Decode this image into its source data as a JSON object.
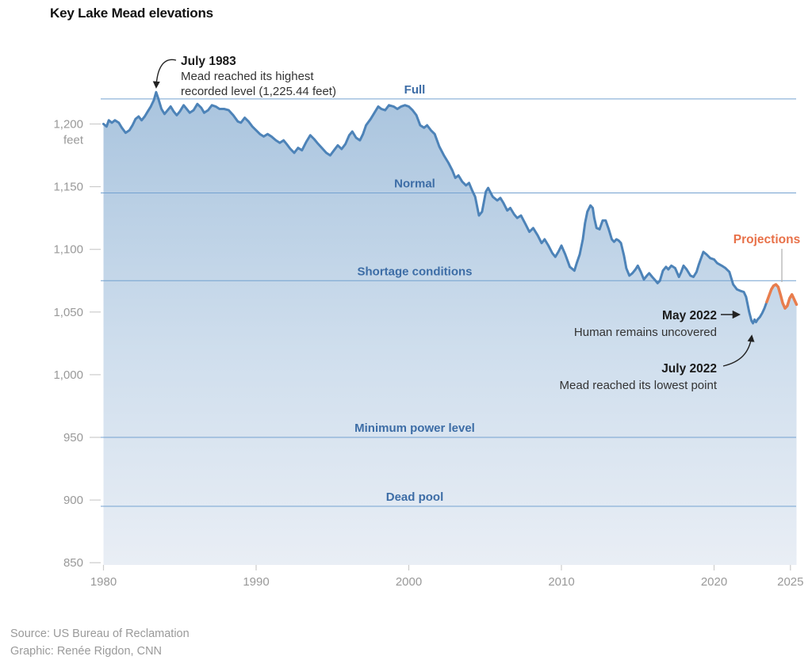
{
  "title": "Key Lake Mead elevations",
  "footer": {
    "source_line": "Source: US Bureau of Reclamation",
    "credit_line": "Graphic: Renée Rigdon, CNN"
  },
  "chart_data": {
    "type": "area",
    "title": "Key Lake Mead elevations",
    "x_axis": {
      "range": [
        1980,
        2025.4
      ],
      "ticks": [
        {
          "label": "1980",
          "value": 1980
        },
        {
          "label": "1990",
          "value": 1990
        },
        {
          "label": "2000",
          "value": 2000
        },
        {
          "label": "2010",
          "value": 2010
        },
        {
          "label": "2020",
          "value": 2020
        },
        {
          "label": "2025",
          "value": 2025
        }
      ]
    },
    "y_axis": {
      "unit": "feet",
      "range": [
        850,
        1230
      ],
      "ticks": [
        {
          "label": "1,200",
          "value": 1200
        },
        {
          "label": "1,150",
          "value": 1150
        },
        {
          "label": "1,100",
          "value": 1100
        },
        {
          "label": "1,050",
          "value": 1050
        },
        {
          "label": "1,000",
          "value": 1000
        },
        {
          "label": "950",
          "value": 950
        },
        {
          "label": "900",
          "value": 900
        },
        {
          "label": "850",
          "value": 850
        }
      ]
    },
    "reference_lines": [
      {
        "id": "full",
        "label": "Full",
        "value": 1220
      },
      {
        "id": "normal",
        "label": "Normal",
        "value": 1145
      },
      {
        "id": "shortage",
        "label": "Shortage conditions",
        "value": 1075
      },
      {
        "id": "minimum-power",
        "label": "Minimum power level",
        "value": 950
      },
      {
        "id": "dead-pool",
        "label": "Dead pool",
        "value": 895
      }
    ],
    "annotations": [
      {
        "id": "july-1983",
        "title": "July 1983",
        "line1": "Mead reached its highest",
        "line2": "recorded level (1,225.44 feet)"
      },
      {
        "id": "may-2022",
        "title": "May 2022",
        "line1": "Human remains uncovered"
      },
      {
        "id": "july-2022",
        "title": "July 2022",
        "line1": "Mead reached its lowest point"
      },
      {
        "id": "projections",
        "title": "Projections"
      }
    ],
    "colors": {
      "historical_line": "#4d83b8",
      "projection_line": "#e87d4d",
      "area_top": "#a9c4de",
      "area_mid": "#cfdeed",
      "area_bottom": "#e9eef5",
      "reference_line": "#74a2d0",
      "reference_label": "#3d6da6",
      "axis_text": "#999999",
      "tick_mark": "#cccccc",
      "annotation_title": "#1a1a1a",
      "annotation_text": "#333333",
      "source_text": "#9a9a9a"
    },
    "series": [
      {
        "name": "Historical elevation",
        "color": "#4d83b8",
        "points": [
          [
            1980.0,
            1200
          ],
          [
            1980.2,
            1198
          ],
          [
            1980.35,
            1203
          ],
          [
            1980.55,
            1201
          ],
          [
            1980.75,
            1203
          ],
          [
            1981.0,
            1201
          ],
          [
            1981.2,
            1197
          ],
          [
            1981.45,
            1193
          ],
          [
            1981.7,
            1195
          ],
          [
            1981.9,
            1199
          ],
          [
            1982.1,
            1204
          ],
          [
            1982.3,
            1206
          ],
          [
            1982.5,
            1203
          ],
          [
            1982.7,
            1206
          ],
          [
            1982.9,
            1210
          ],
          [
            1983.1,
            1214
          ],
          [
            1983.3,
            1219
          ],
          [
            1983.45,
            1225.4
          ],
          [
            1983.6,
            1220
          ],
          [
            1983.8,
            1212
          ],
          [
            1984.0,
            1208
          ],
          [
            1984.2,
            1211
          ],
          [
            1984.4,
            1214
          ],
          [
            1984.6,
            1210
          ],
          [
            1984.8,
            1207
          ],
          [
            1985.0,
            1210
          ],
          [
            1985.25,
            1215
          ],
          [
            1985.45,
            1212
          ],
          [
            1985.65,
            1209
          ],
          [
            1985.9,
            1211
          ],
          [
            1986.15,
            1216
          ],
          [
            1986.4,
            1213
          ],
          [
            1986.6,
            1209
          ],
          [
            1986.85,
            1211
          ],
          [
            1987.1,
            1215
          ],
          [
            1987.35,
            1214
          ],
          [
            1987.6,
            1212
          ],
          [
            1987.9,
            1212
          ],
          [
            1988.2,
            1211
          ],
          [
            1988.5,
            1207
          ],
          [
            1988.8,
            1202
          ],
          [
            1989.0,
            1201
          ],
          [
            1989.25,
            1205
          ],
          [
            1989.5,
            1202
          ],
          [
            1989.75,
            1198
          ],
          [
            1990.0,
            1195
          ],
          [
            1990.25,
            1192
          ],
          [
            1990.5,
            1190
          ],
          [
            1990.75,
            1192
          ],
          [
            1991.0,
            1190
          ],
          [
            1991.3,
            1187
          ],
          [
            1991.55,
            1185
          ],
          [
            1991.8,
            1187
          ],
          [
            1992.0,
            1184
          ],
          [
            1992.25,
            1180
          ],
          [
            1992.5,
            1177
          ],
          [
            1992.75,
            1181
          ],
          [
            1993.0,
            1179
          ],
          [
            1993.3,
            1186
          ],
          [
            1993.55,
            1191
          ],
          [
            1993.8,
            1188
          ],
          [
            1994.0,
            1185
          ],
          [
            1994.3,
            1181
          ],
          [
            1994.6,
            1177
          ],
          [
            1994.85,
            1175
          ],
          [
            1995.1,
            1179
          ],
          [
            1995.35,
            1183
          ],
          [
            1995.6,
            1180
          ],
          [
            1995.85,
            1184
          ],
          [
            1996.1,
            1191
          ],
          [
            1996.3,
            1194
          ],
          [
            1996.55,
            1189
          ],
          [
            1996.8,
            1187
          ],
          [
            1997.0,
            1192
          ],
          [
            1997.2,
            1199
          ],
          [
            1997.5,
            1204
          ],
          [
            1997.75,
            1209
          ],
          [
            1998.0,
            1214
          ],
          [
            1998.2,
            1212
          ],
          [
            1998.45,
            1211
          ],
          [
            1998.7,
            1215
          ],
          [
            1999.0,
            1214
          ],
          [
            1999.25,
            1212
          ],
          [
            1999.5,
            1214
          ],
          [
            1999.75,
            1215
          ],
          [
            2000.0,
            1214
          ],
          [
            2000.25,
            1211
          ],
          [
            2000.5,
            1207
          ],
          [
            2000.75,
            1199
          ],
          [
            2001.0,
            1197
          ],
          [
            2001.2,
            1199
          ],
          [
            2001.45,
            1195
          ],
          [
            2001.7,
            1192
          ],
          [
            2002.0,
            1182
          ],
          [
            2002.3,
            1175
          ],
          [
            2002.6,
            1169
          ],
          [
            2002.85,
            1163
          ],
          [
            2003.05,
            1157
          ],
          [
            2003.25,
            1159
          ],
          [
            2003.5,
            1154
          ],
          [
            2003.75,
            1151
          ],
          [
            2003.95,
            1153
          ],
          [
            2004.15,
            1147
          ],
          [
            2004.35,
            1142
          ],
          [
            2004.6,
            1127
          ],
          [
            2004.8,
            1130
          ],
          [
            2005.05,
            1146
          ],
          [
            2005.2,
            1149
          ],
          [
            2005.5,
            1142
          ],
          [
            2005.8,
            1139
          ],
          [
            2006.0,
            1141
          ],
          [
            2006.2,
            1137
          ],
          [
            2006.45,
            1131
          ],
          [
            2006.65,
            1133
          ],
          [
            2006.9,
            1128
          ],
          [
            2007.1,
            1125
          ],
          [
            2007.35,
            1127
          ],
          [
            2007.65,
            1120
          ],
          [
            2007.9,
            1114
          ],
          [
            2008.15,
            1117
          ],
          [
            2008.45,
            1111
          ],
          [
            2008.7,
            1105
          ],
          [
            2008.9,
            1108
          ],
          [
            2009.15,
            1103
          ],
          [
            2009.4,
            1097
          ],
          [
            2009.6,
            1094
          ],
          [
            2009.8,
            1098
          ],
          [
            2010.0,
            1103
          ],
          [
            2010.25,
            1096
          ],
          [
            2010.55,
            1086
          ],
          [
            2010.85,
            1083
          ],
          [
            2011.0,
            1089
          ],
          [
            2011.2,
            1096
          ],
          [
            2011.4,
            1108
          ],
          [
            2011.55,
            1121
          ],
          [
            2011.7,
            1130
          ],
          [
            2011.9,
            1135
          ],
          [
            2012.05,
            1133
          ],
          [
            2012.15,
            1125
          ],
          [
            2012.3,
            1117
          ],
          [
            2012.5,
            1116
          ],
          [
            2012.7,
            1123
          ],
          [
            2012.9,
            1123
          ],
          [
            2013.1,
            1116
          ],
          [
            2013.3,
            1108
          ],
          [
            2013.45,
            1106
          ],
          [
            2013.6,
            1108
          ],
          [
            2013.75,
            1107
          ],
          [
            2013.9,
            1105
          ],
          [
            2014.1,
            1095
          ],
          [
            2014.25,
            1085
          ],
          [
            2014.45,
            1079
          ],
          [
            2014.65,
            1081
          ],
          [
            2014.85,
            1084
          ],
          [
            2015.0,
            1087
          ],
          [
            2015.2,
            1082
          ],
          [
            2015.4,
            1076
          ],
          [
            2015.6,
            1079
          ],
          [
            2015.75,
            1081
          ],
          [
            2015.95,
            1078
          ],
          [
            2016.1,
            1076
          ],
          [
            2016.3,
            1073
          ],
          [
            2016.45,
            1075
          ],
          [
            2016.65,
            1083
          ],
          [
            2016.85,
            1086
          ],
          [
            2017.0,
            1084
          ],
          [
            2017.2,
            1087
          ],
          [
            2017.45,
            1085
          ],
          [
            2017.7,
            1078
          ],
          [
            2017.85,
            1082
          ],
          [
            2018.0,
            1087
          ],
          [
            2018.2,
            1084
          ],
          [
            2018.45,
            1079
          ],
          [
            2018.65,
            1078
          ],
          [
            2018.85,
            1082
          ],
          [
            2019.0,
            1088
          ],
          [
            2019.3,
            1098
          ],
          [
            2019.5,
            1096
          ],
          [
            2019.75,
            1093
          ],
          [
            2020.0,
            1092
          ],
          [
            2020.2,
            1089
          ],
          [
            2020.5,
            1087
          ],
          [
            2020.75,
            1085
          ],
          [
            2021.0,
            1082
          ],
          [
            2021.25,
            1072
          ],
          [
            2021.5,
            1068
          ],
          [
            2021.7,
            1067
          ],
          [
            2021.95,
            1066
          ],
          [
            2022.1,
            1062
          ],
          [
            2022.3,
            1050
          ],
          [
            2022.45,
            1043
          ],
          [
            2022.55,
            1041
          ],
          [
            2022.65,
            1044
          ],
          [
            2022.75,
            1042
          ],
          [
            2022.85,
            1044
          ],
          [
            2023.0,
            1046
          ],
          [
            2023.15,
            1049
          ],
          [
            2023.3,
            1053
          ],
          [
            2023.45,
            1058
          ]
        ]
      },
      {
        "name": "Projections",
        "color": "#e87d4d",
        "points": [
          [
            2023.45,
            1058
          ],
          [
            2023.6,
            1063
          ],
          [
            2023.75,
            1068
          ],
          [
            2023.9,
            1071
          ],
          [
            2024.05,
            1072
          ],
          [
            2024.2,
            1070
          ],
          [
            2024.35,
            1064
          ],
          [
            2024.5,
            1057
          ],
          [
            2024.65,
            1053
          ],
          [
            2024.8,
            1055
          ],
          [
            2024.95,
            1061
          ],
          [
            2025.1,
            1064
          ],
          [
            2025.25,
            1060
          ],
          [
            2025.4,
            1056
          ]
        ]
      }
    ]
  }
}
